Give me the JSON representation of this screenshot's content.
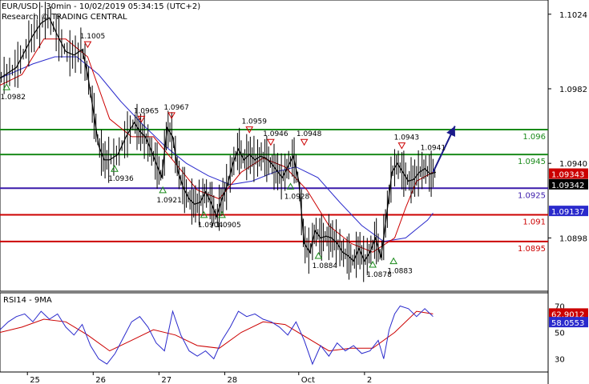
{
  "header": {
    "title": "EUR/USD - 30min - 10/02/2019 05:34:15 (UTC+2)",
    "subtitle": "Research © TRADING CENTRAL"
  },
  "colors": {
    "price": "#000000",
    "ma_fast": "#cc0000",
    "ma_slow": "#2a2acc",
    "resistance": "#1a8a1a",
    "support": "#cc0000",
    "pivot": "#3a1aaa",
    "arrow": "#1a1a8a",
    "rsi": "#2a2acc",
    "rsi_ma": "#cc0000"
  },
  "chart_data": [
    {
      "type": "line",
      "name": "price",
      "ylim": [
        1.0868,
        1.1032
      ],
      "y_ticks": [
        "1.1024",
        "1.0982",
        "1.0940",
        "1.0898"
      ],
      "x_ticks": [
        "25",
        "26",
        "27",
        "28",
        "Oct",
        "2"
      ],
      "x_tick_pos": [
        0.05,
        0.17,
        0.29,
        0.41,
        0.545,
        0.665
      ],
      "price_path": [
        [
          0.0,
          1.0988
        ],
        [
          0.015,
          1.0991
        ],
        [
          0.03,
          1.0994
        ],
        [
          0.045,
          1.1003
        ],
        [
          0.06,
          1.1012
        ],
        [
          0.075,
          1.1019
        ],
        [
          0.09,
          1.1022
        ],
        [
          0.105,
          1.1012
        ],
        [
          0.12,
          1.1003
        ],
        [
          0.135,
          1.1001
        ],
        [
          0.15,
          1.1004
        ],
        [
          0.16,
          1.099
        ],
        [
          0.17,
          1.097
        ],
        [
          0.18,
          1.095
        ],
        [
          0.19,
          1.0942
        ],
        [
          0.2,
          1.0942
        ],
        [
          0.215,
          1.0945
        ],
        [
          0.23,
          1.0955
        ],
        [
          0.245,
          1.0963
        ],
        [
          0.255,
          1.0958
        ],
        [
          0.265,
          1.0955
        ],
        [
          0.275,
          1.0948
        ],
        [
          0.285,
          1.094
        ],
        [
          0.295,
          1.0932
        ],
        [
          0.305,
          1.096
        ],
        [
          0.315,
          1.0955
        ],
        [
          0.325,
          1.0935
        ],
        [
          0.335,
          1.0926
        ],
        [
          0.345,
          1.092
        ],
        [
          0.355,
          1.0917
        ],
        [
          0.365,
          1.0918
        ],
        [
          0.375,
          1.0924
        ],
        [
          0.385,
          1.0918
        ],
        [
          0.395,
          1.091
        ],
        [
          0.405,
          1.092
        ],
        [
          0.415,
          1.0928
        ],
        [
          0.425,
          1.094
        ],
        [
          0.435,
          1.0948
        ],
        [
          0.445,
          1.0942
        ],
        [
          0.455,
          1.0945
        ],
        [
          0.465,
          1.0942
        ],
        [
          0.475,
          1.0944
        ],
        [
          0.485,
          1.0943
        ],
        [
          0.495,
          1.094
        ],
        [
          0.505,
          1.0936
        ],
        [
          0.515,
          1.0932
        ],
        [
          0.525,
          1.0938
        ],
        [
          0.535,
          1.0944
        ],
        [
          0.545,
          1.093
        ],
        [
          0.555,
          1.0895
        ],
        [
          0.565,
          1.089
        ],
        [
          0.575,
          1.0902
        ],
        [
          0.585,
          1.0898
        ],
        [
          0.595,
          1.0899
        ],
        [
          0.605,
          1.0898
        ],
        [
          0.615,
          1.0895
        ],
        [
          0.625,
          1.089
        ],
        [
          0.635,
          1.0888
        ],
        [
          0.645,
          1.0885
        ],
        [
          0.655,
          1.0892
        ],
        [
          0.665,
          1.0885
        ],
        [
          0.675,
          1.089
        ],
        [
          0.685,
          1.0898
        ],
        [
          0.695,
          1.0887
        ],
        [
          0.705,
          1.091
        ],
        [
          0.715,
          1.0935
        ],
        [
          0.725,
          1.094
        ],
        [
          0.735,
          1.0935
        ],
        [
          0.745,
          1.093
        ],
        [
          0.755,
          1.0931
        ],
        [
          0.765,
          1.0935
        ],
        [
          0.775,
          1.0937
        ],
        [
          0.785,
          1.0934
        ],
        [
          0.795,
          1.0935
        ]
      ],
      "ma_fast": [
        [
          0.0,
          1.0984
        ],
        [
          0.04,
          1.099
        ],
        [
          0.08,
          1.101
        ],
        [
          0.12,
          1.101
        ],
        [
          0.16,
          1.1
        ],
        [
          0.2,
          1.0965
        ],
        [
          0.24,
          1.0955
        ],
        [
          0.28,
          1.0955
        ],
        [
          0.32,
          1.094
        ],
        [
          0.36,
          1.0925
        ],
        [
          0.4,
          1.092
        ],
        [
          0.44,
          1.0935
        ],
        [
          0.48,
          1.0943
        ],
        [
          0.52,
          1.0938
        ],
        [
          0.56,
          1.0925
        ],
        [
          0.6,
          1.0905
        ],
        [
          0.64,
          1.0895
        ],
        [
          0.68,
          1.089
        ],
        [
          0.72,
          1.0898
        ],
        [
          0.74,
          1.0915
        ],
        [
          0.76,
          1.093
        ],
        [
          0.79,
          1.0935
        ]
      ],
      "ma_slow": [
        [
          0.0,
          1.0988
        ],
        [
          0.06,
          1.0996
        ],
        [
          0.1,
          1.1
        ],
        [
          0.14,
          1.1
        ],
        [
          0.18,
          1.099
        ],
        [
          0.22,
          1.0975
        ],
        [
          0.26,
          1.0962
        ],
        [
          0.3,
          1.095
        ],
        [
          0.34,
          1.094
        ],
        [
          0.38,
          1.0933
        ],
        [
          0.42,
          1.0928
        ],
        [
          0.46,
          1.093
        ],
        [
          0.5,
          1.0935
        ],
        [
          0.54,
          1.0938
        ],
        [
          0.58,
          1.0932
        ],
        [
          0.62,
          1.0918
        ],
        [
          0.66,
          1.0905
        ],
        [
          0.7,
          1.0896
        ],
        [
          0.74,
          1.0898
        ],
        [
          0.76,
          1.0903
        ],
        [
          0.78,
          1.0908
        ],
        [
          0.79,
          1.0912
        ]
      ],
      "levels": [
        {
          "label": "1.096",
          "value": 1.0959,
          "color": "#1a8a1a"
        },
        {
          "label": "1.0945",
          "value": 1.0945,
          "color": "#1a8a1a"
        },
        {
          "label": "1.0925",
          "value": 1.0926,
          "color": "#3a1aaa"
        },
        {
          "label": "1.091",
          "value": 1.0911,
          "color": "#cc0000"
        },
        {
          "label": "1.0895",
          "value": 1.0896,
          "color": "#cc0000"
        }
      ],
      "price_badges": [
        {
          "label": "1.09343",
          "value": 1.0934,
          "bg": "#cc0000",
          "fg": "#ffffff"
        },
        {
          "label": "1.09342",
          "value": 1.0928,
          "bg": "#000000",
          "fg": "#ffffff"
        },
        {
          "label": "1.09137",
          "value": 1.0913,
          "bg": "#2a2acc",
          "fg": "#ffffff"
        }
      ],
      "projection": [
        [
          0.79,
          1.0935
        ],
        [
          0.83,
          1.0961
        ]
      ],
      "annotations": [
        {
          "label": "1.0982",
          "x": 0.012,
          "value": 1.0986,
          "marker": "up"
        },
        {
          "label": "1.1005",
          "x": 0.16,
          "value": 1.1004,
          "marker": "down"
        },
        {
          "label": "1.0965",
          "x": 0.258,
          "value": 1.0962,
          "marker": "down"
        },
        {
          "label": "1.0967",
          "x": 0.313,
          "value": 1.0964,
          "marker": "down"
        },
        {
          "label": "1.0936",
          "x": 0.209,
          "value": 1.094,
          "marker": "up"
        },
        {
          "label": "1.0921",
          "x": 0.297,
          "value": 1.0928,
          "marker": "up"
        },
        {
          "label": "1.0904",
          "x": 0.372,
          "value": 1.0914,
          "marker": "up"
        },
        {
          "label": "1.0905",
          "x": 0.405,
          "value": 1.0914,
          "marker": "up"
        },
        {
          "label": "1.0959",
          "x": 0.455,
          "value": 1.0956,
          "marker": "down"
        },
        {
          "label": "1.0946",
          "x": 0.494,
          "value": 1.0949,
          "marker": "down"
        },
        {
          "label": "1.0948",
          "x": 0.555,
          "value": 1.0949,
          "marker": "down"
        },
        {
          "label": "1.0928",
          "x": 0.53,
          "value": 1.093,
          "marker": "up"
        },
        {
          "label": "1.0884",
          "x": 0.581,
          "value": 1.0891,
          "marker": "up"
        },
        {
          "label": "1.0878",
          "x": 0.68,
          "value": 1.0886,
          "marker": "up"
        },
        {
          "label": "1.0883",
          "x": 0.718,
          "value": 1.0888,
          "marker": "up"
        },
        {
          "label": "1.0943",
          "x": 0.733,
          "value": 1.0947,
          "marker": "down"
        },
        {
          "label": "1.0941",
          "x": 0.79,
          "value": 1.0944,
          "marker": "none"
        }
      ]
    },
    {
      "type": "line",
      "name": "RSI14 - 9MA",
      "ylim": [
        20,
        80
      ],
      "y_ticks": [
        "70",
        "50",
        "30"
      ],
      "badges": [
        {
          "label": "62.9012",
          "value": 64,
          "bg": "#cc0000",
          "fg": "#ffffff"
        },
        {
          "label": "58.0553",
          "value": 57.5,
          "bg": "#2a2acc",
          "fg": "#ffffff"
        }
      ],
      "rsi": [
        [
          0.0,
          52
        ],
        [
          0.015,
          58
        ],
        [
          0.03,
          62
        ],
        [
          0.045,
          64
        ],
        [
          0.06,
          58
        ],
        [
          0.075,
          66
        ],
        [
          0.09,
          60
        ],
        [
          0.105,
          64
        ],
        [
          0.12,
          54
        ],
        [
          0.135,
          48
        ],
        [
          0.15,
          56
        ],
        [
          0.165,
          40
        ],
        [
          0.18,
          30
        ],
        [
          0.195,
          26
        ],
        [
          0.21,
          34
        ],
        [
          0.225,
          46
        ],
        [
          0.24,
          58
        ],
        [
          0.255,
          62
        ],
        [
          0.27,
          54
        ],
        [
          0.285,
          42
        ],
        [
          0.3,
          36
        ],
        [
          0.315,
          66
        ],
        [
          0.33,
          48
        ],
        [
          0.345,
          36
        ],
        [
          0.36,
          32
        ],
        [
          0.375,
          36
        ],
        [
          0.39,
          30
        ],
        [
          0.405,
          44
        ],
        [
          0.42,
          54
        ],
        [
          0.435,
          66
        ],
        [
          0.45,
          62
        ],
        [
          0.465,
          64
        ],
        [
          0.48,
          60
        ],
        [
          0.495,
          58
        ],
        [
          0.51,
          54
        ],
        [
          0.525,
          48
        ],
        [
          0.54,
          58
        ],
        [
          0.555,
          44
        ],
        [
          0.57,
          26
        ],
        [
          0.585,
          40
        ],
        [
          0.6,
          32
        ],
        [
          0.615,
          42
        ],
        [
          0.63,
          36
        ],
        [
          0.645,
          40
        ],
        [
          0.66,
          34
        ],
        [
          0.675,
          36
        ],
        [
          0.69,
          44
        ],
        [
          0.7,
          30
        ],
        [
          0.71,
          52
        ],
        [
          0.72,
          64
        ],
        [
          0.73,
          70
        ],
        [
          0.745,
          68
        ],
        [
          0.76,
          62
        ],
        [
          0.775,
          68
        ],
        [
          0.79,
          62
        ]
      ],
      "rsi_ma": [
        [
          0.0,
          50
        ],
        [
          0.04,
          54
        ],
        [
          0.08,
          60
        ],
        [
          0.12,
          58
        ],
        [
          0.16,
          48
        ],
        [
          0.2,
          36
        ],
        [
          0.24,
          44
        ],
        [
          0.28,
          52
        ],
        [
          0.32,
          48
        ],
        [
          0.36,
          40
        ],
        [
          0.4,
          38
        ],
        [
          0.44,
          50
        ],
        [
          0.48,
          58
        ],
        [
          0.52,
          56
        ],
        [
          0.56,
          46
        ],
        [
          0.6,
          36
        ],
        [
          0.64,
          38
        ],
        [
          0.68,
          38
        ],
        [
          0.72,
          50
        ],
        [
          0.76,
          66
        ],
        [
          0.79,
          64
        ]
      ]
    }
  ]
}
